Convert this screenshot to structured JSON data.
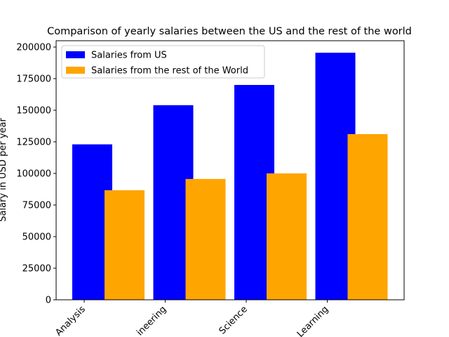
{
  "chart_data": {
    "type": "bar",
    "title": "Comparison of yearly salaries between the US and the rest of the world",
    "y_label": "Salary in USD per year",
    "categories": [
      "Analysis",
      "ineering",
      "Science",
      "Learning"
    ],
    "series": [
      {
        "name": "Salaries from US",
        "color": "#0000ff",
        "values": [
          123000,
          154000,
          170000,
          195500
        ]
      },
      {
        "name": "Salaries from the rest of the World",
        "color": "#ffa500",
        "values": [
          86700,
          95600,
          100000,
          131100
        ]
      }
    ],
    "ylim": [
      0,
      205000
    ],
    "yticks": [
      0,
      25000,
      50000,
      75000,
      100000,
      125000,
      150000,
      175000,
      200000
    ],
    "legend": "upper left"
  }
}
